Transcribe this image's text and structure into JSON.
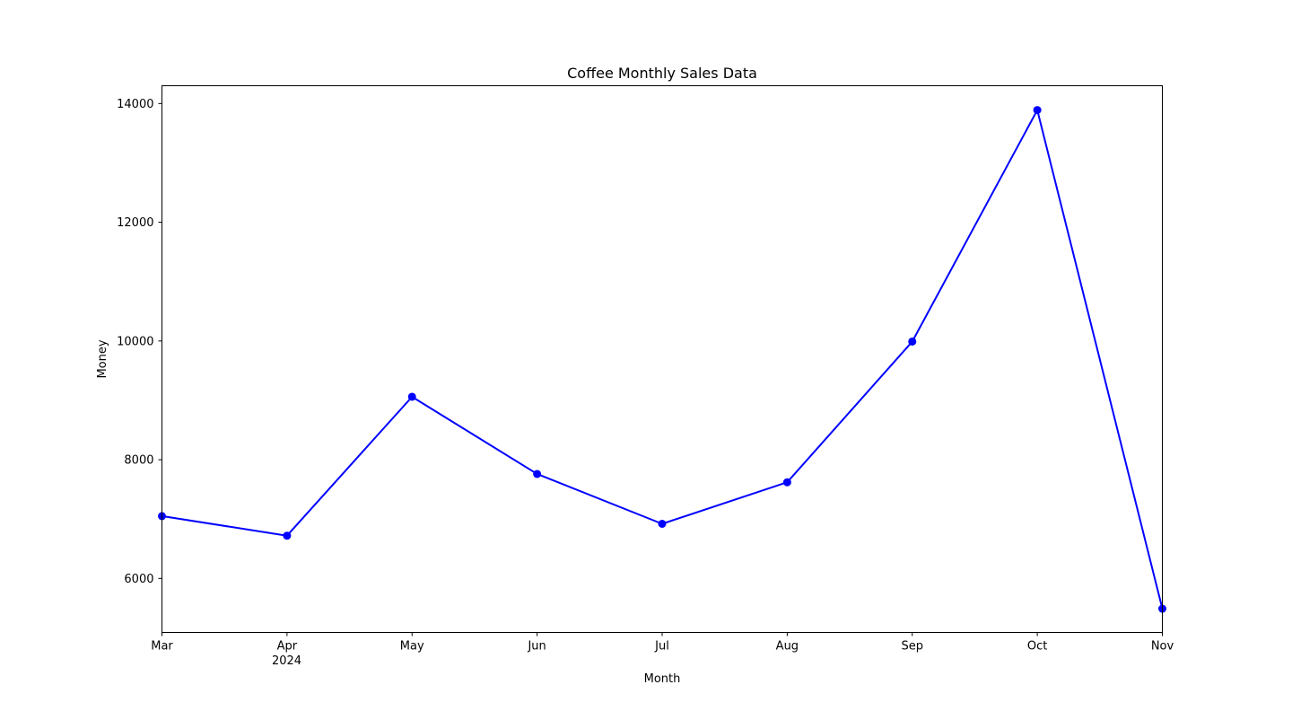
{
  "chart_data": {
    "type": "line",
    "title": "Coffee Monthly Sales Data",
    "xlabel": "Month",
    "ylabel": "Money",
    "x": [
      "2024-03",
      "2024-04",
      "2024-05",
      "2024-06",
      "2024-07",
      "2024-08",
      "2024-09",
      "2024-10",
      "2024-11"
    ],
    "x_tick_labels": [
      "Mar",
      "Apr",
      "May",
      "Jun",
      "Jul",
      "Aug",
      "Sep",
      "Oct",
      "Nov"
    ],
    "x_year_label": "2024",
    "series": [
      {
        "values": [
          7050,
          6720,
          9060,
          7760,
          6920,
          7620,
          9990,
          13890,
          5490
        ],
        "color": "#0000ff",
        "marker": "circle"
      }
    ],
    "y_ticks": [
      6000,
      8000,
      10000,
      12000,
      14000
    ],
    "ylim": [
      5090,
      14300
    ],
    "grid": false,
    "legend": "none"
  }
}
